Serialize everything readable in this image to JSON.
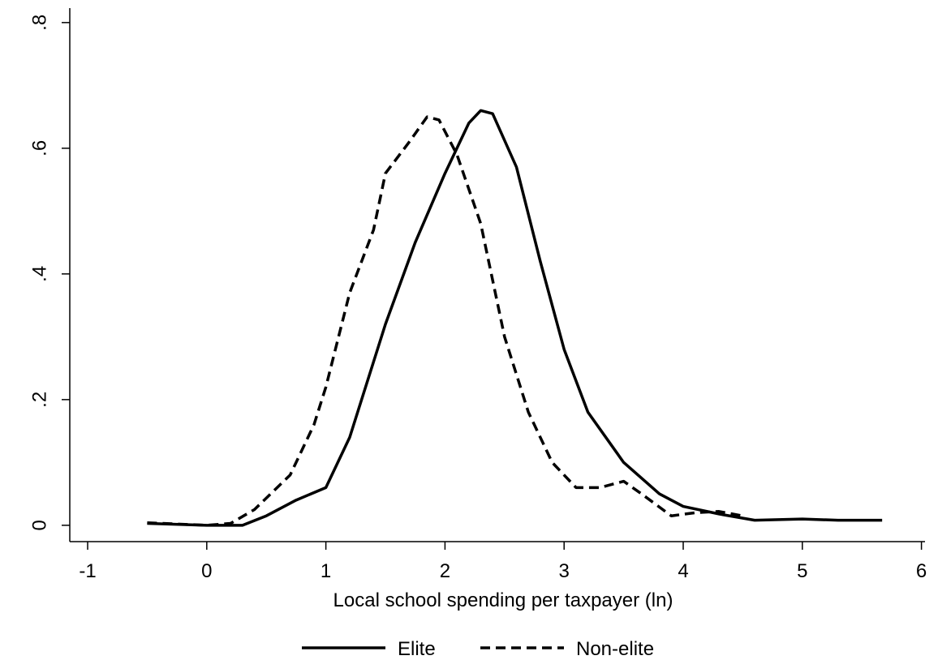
{
  "chart_data": {
    "type": "line",
    "x_label": "Local school spending per taxpayer (ln)",
    "xlim": [
      -1.15,
      6.03
    ],
    "ylim": [
      -0.026,
      0.823
    ],
    "xticks": [
      -1,
      0,
      1,
      2,
      3,
      4,
      5,
      6
    ],
    "yticks": [
      0,
      {
        "value": 0.2,
        "label": ".2"
      },
      {
        "value": 0.4,
        "label": ".4"
      },
      {
        "value": 0.6,
        "label": ".6"
      },
      {
        "value": 0.8,
        "label": ".8"
      }
    ],
    "legend": "bottom",
    "series": [
      {
        "name": "Elite",
        "color": "#000000",
        "dash": "solid",
        "x": [
          -0.5,
          0,
          0.3,
          0.5,
          0.75,
          1.0,
          1.2,
          1.5,
          1.75,
          2.0,
          2.2,
          2.3,
          2.4,
          2.6,
          2.8,
          3.0,
          3.2,
          3.5,
          3.8,
          4.0,
          4.3,
          4.6,
          5.0,
          5.3,
          5.67
        ],
        "values": [
          0.003,
          0.0,
          0.0,
          0.015,
          0.04,
          0.06,
          0.14,
          0.32,
          0.45,
          0.56,
          0.64,
          0.66,
          0.655,
          0.57,
          0.42,
          0.28,
          0.18,
          0.1,
          0.05,
          0.03,
          0.018,
          0.008,
          0.01,
          0.008,
          0.008
        ]
      },
      {
        "name": "Non-elite",
        "color": "#000000",
        "dash": "dashed",
        "x": [
          -0.5,
          0,
          0.2,
          0.4,
          0.7,
          0.9,
          1.0,
          1.2,
          1.4,
          1.5,
          1.7,
          1.85,
          1.95,
          2.1,
          2.3,
          2.5,
          2.7,
          2.9,
          3.1,
          3.3,
          3.5,
          3.65,
          3.9,
          4.1,
          4.3,
          4.5
        ],
        "values": [
          0.004,
          0.0,
          0.003,
          0.025,
          0.08,
          0.16,
          0.22,
          0.37,
          0.47,
          0.56,
          0.61,
          0.65,
          0.645,
          0.59,
          0.48,
          0.3,
          0.18,
          0.1,
          0.06,
          0.06,
          0.07,
          0.05,
          0.015,
          0.02,
          0.022,
          0.015
        ]
      }
    ]
  }
}
